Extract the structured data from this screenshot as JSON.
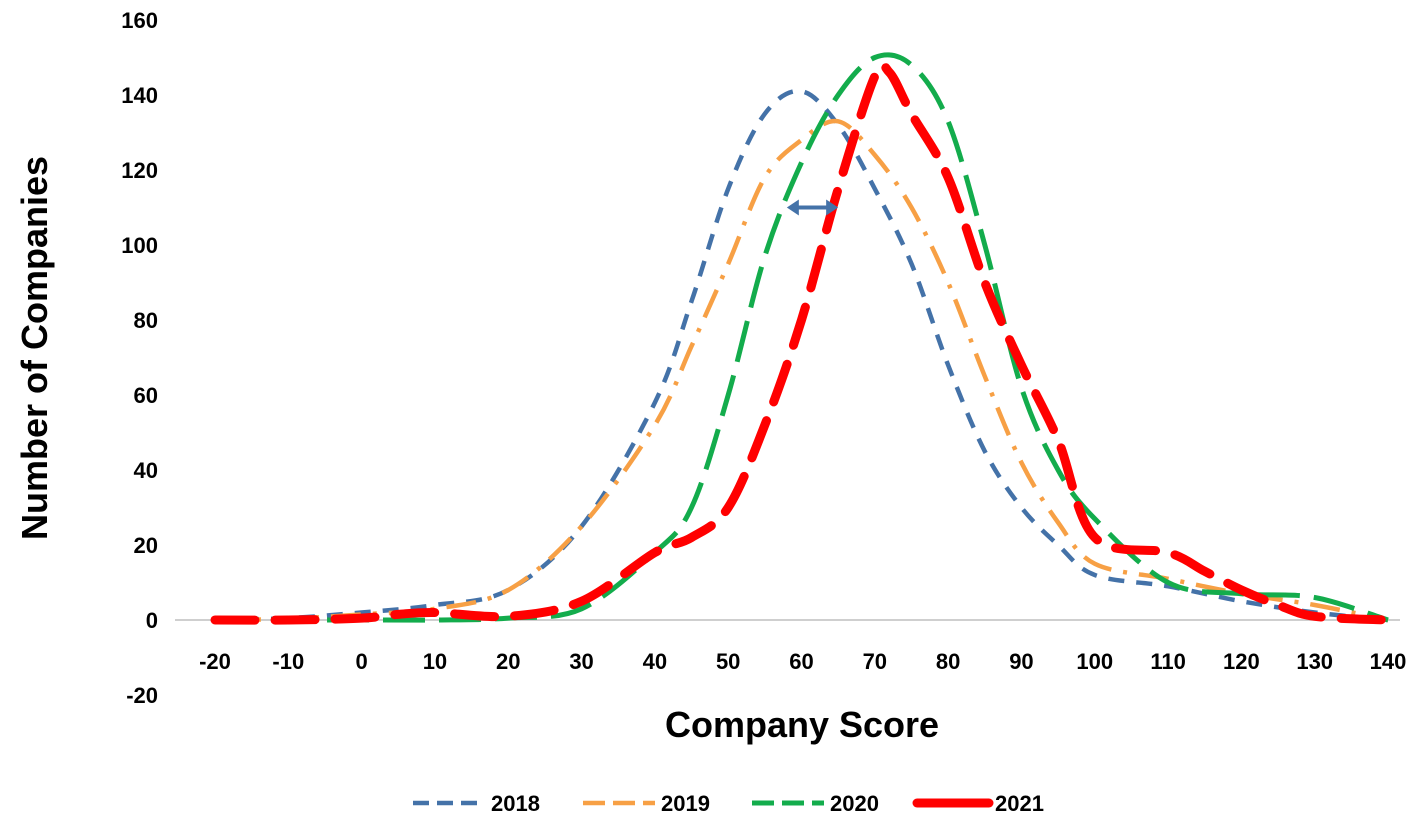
{
  "chart_data": {
    "type": "line",
    "title": "",
    "xlabel": "Company Score",
    "ylabel": "Number of Companies",
    "xlim": [
      -20,
      140
    ],
    "ylim": [
      -20,
      160
    ],
    "x_ticks": [
      -20,
      -10,
      0,
      10,
      20,
      30,
      40,
      50,
      60,
      70,
      80,
      90,
      100,
      110,
      120,
      130,
      140
    ],
    "y_ticks": [
      160,
      140,
      120,
      100,
      80,
      60,
      40,
      20,
      0,
      -20
    ],
    "legend_position": "bottom",
    "series": [
      {
        "name": "2018",
        "color": "#4472A8",
        "dash": "short-dash",
        "points": [
          [
            -20,
            0
          ],
          [
            -10,
            0.5
          ],
          [
            0,
            2
          ],
          [
            10,
            4
          ],
          [
            20,
            8
          ],
          [
            30,
            25
          ],
          [
            40,
            58
          ],
          [
            45,
            85
          ],
          [
            50,
            115
          ],
          [
            55,
            135
          ],
          [
            60,
            141
          ],
          [
            65,
            132
          ],
          [
            70,
            115
          ],
          [
            75,
            95
          ],
          [
            80,
            68
          ],
          [
            85,
            45
          ],
          [
            90,
            30
          ],
          [
            95,
            20
          ],
          [
            100,
            12
          ],
          [
            110,
            9
          ],
          [
            120,
            5
          ],
          [
            130,
            2
          ],
          [
            140,
            0
          ]
        ]
      },
      {
        "name": "2019",
        "color": "#F7A045",
        "dash": "dash-dot",
        "points": [
          [
            -20,
            0
          ],
          [
            -10,
            0.3
          ],
          [
            0,
            1.5
          ],
          [
            10,
            3
          ],
          [
            20,
            8
          ],
          [
            30,
            25
          ],
          [
            40,
            52
          ],
          [
            45,
            73
          ],
          [
            50,
            95
          ],
          [
            55,
            118
          ],
          [
            60,
            128
          ],
          [
            65,
            133
          ],
          [
            70,
            124
          ],
          [
            75,
            110
          ],
          [
            80,
            90
          ],
          [
            85,
            65
          ],
          [
            90,
            42
          ],
          [
            95,
            26
          ],
          [
            100,
            15
          ],
          [
            110,
            11
          ],
          [
            120,
            7
          ],
          [
            130,
            4
          ],
          [
            140,
            0
          ]
        ]
      },
      {
        "name": "2020",
        "color": "#13AC4C",
        "dash": "long-dash",
        "points": [
          [
            -20,
            0
          ],
          [
            -10,
            0
          ],
          [
            0,
            0
          ],
          [
            10,
            0
          ],
          [
            20,
            0.5
          ],
          [
            30,
            3
          ],
          [
            40,
            18
          ],
          [
            45,
            30
          ],
          [
            50,
            60
          ],
          [
            55,
            97
          ],
          [
            60,
            122
          ],
          [
            65,
            140
          ],
          [
            70,
            150
          ],
          [
            75,
            148
          ],
          [
            80,
            133
          ],
          [
            85,
            100
          ],
          [
            90,
            62
          ],
          [
            95,
            40
          ],
          [
            100,
            27
          ],
          [
            110,
            10
          ],
          [
            120,
            7
          ],
          [
            130,
            6
          ],
          [
            140,
            0
          ]
        ]
      },
      {
        "name": "2021",
        "color": "#FF0000",
        "dash": "thick-long-dash",
        "points": [
          [
            -20,
            0
          ],
          [
            -10,
            0
          ],
          [
            0,
            0.5
          ],
          [
            5,
            1.5
          ],
          [
            10,
            2
          ],
          [
            20,
            1
          ],
          [
            30,
            5
          ],
          [
            40,
            18
          ],
          [
            45,
            22
          ],
          [
            50,
            30
          ],
          [
            55,
            52
          ],
          [
            60,
            80
          ],
          [
            65,
            115
          ],
          [
            70,
            145
          ],
          [
            72,
            146
          ],
          [
            75,
            135
          ],
          [
            80,
            118
          ],
          [
            85,
            90
          ],
          [
            90,
            68
          ],
          [
            95,
            48
          ],
          [
            100,
            22
          ],
          [
            110,
            18
          ],
          [
            115,
            13
          ],
          [
            120,
            8
          ],
          [
            125,
            4
          ],
          [
            130,
            1
          ],
          [
            140,
            0
          ]
        ]
      }
    ],
    "annotations": [
      {
        "type": "double-arrow",
        "from": [
          58,
          110
        ],
        "to": [
          65,
          110
        ],
        "color": "#4472A8"
      }
    ]
  }
}
